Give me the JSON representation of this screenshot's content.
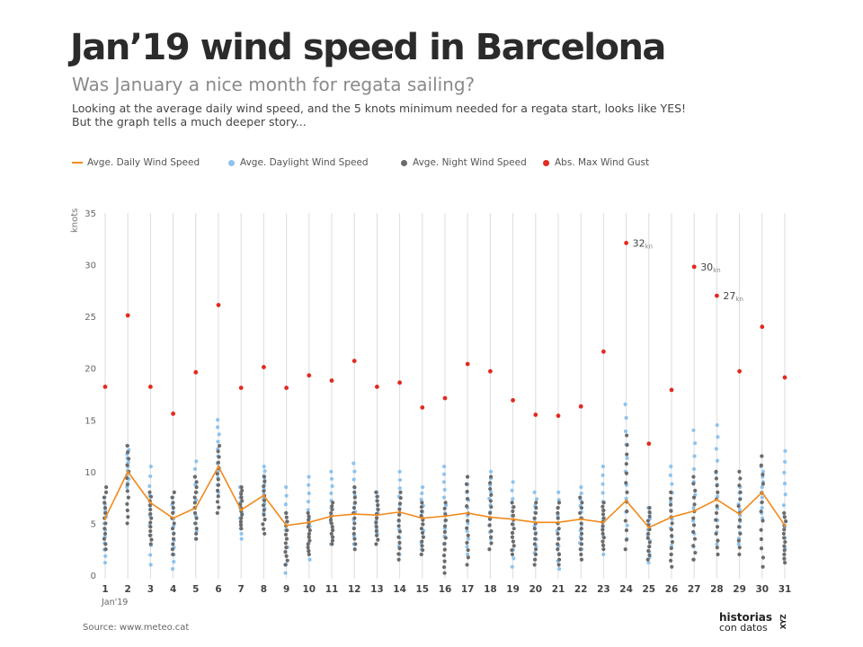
{
  "header": {
    "title": "Jan’19 wind speed in Barcelona",
    "subtitle": "Was January a nice month for regata sailing?",
    "desc_line1": "Looking at the average daily wind speed, and the 5 knots minimum needed for a regata start, looks like YES!",
    "desc_line2": "But the graph tells a much deeper story..."
  },
  "legend": [
    {
      "label": "Avge. Daily Wind Speed",
      "color": "#f28a1c",
      "kind": "line"
    },
    {
      "label": "Avge. Daylight Wind Speed",
      "color": "#8ec3ef",
      "kind": "dot"
    },
    {
      "label": "Avge. Night Wind Speed",
      "color": "#6b6b6b",
      "kind": "dot"
    },
    {
      "label": "Abs. Max Wind Gust",
      "color": "#e22a1f",
      "kind": "dot"
    }
  ],
  "footer": {
    "source": "Source: www.meteo.cat",
    "brand_top": "historias",
    "brand_bottom": "con datos",
    "brand_side": "XYZ"
  },
  "chart_data": {
    "type": "scatter",
    "ylabel": "knots",
    "ylim": [
      0,
      35
    ],
    "yticks": [
      0,
      5,
      10,
      15,
      20,
      25,
      30,
      35
    ],
    "xlabel_sub": "Jan'19",
    "days": [
      1,
      2,
      3,
      4,
      5,
      6,
      7,
      8,
      9,
      10,
      11,
      12,
      13,
      14,
      15,
      16,
      17,
      18,
      19,
      20,
      21,
      22,
      23,
      24,
      25,
      26,
      27,
      28,
      29,
      30,
      31
    ],
    "grid_x": true,
    "colors": {
      "daily": "#f28a1c",
      "day": "#8ec3ef",
      "night": "#6b6b6b",
      "gust": "#e22a1f"
    },
    "series": [
      {
        "name": "Avge. Daily Wind Speed",
        "values": [
          5.5,
          10,
          7,
          5.5,
          6.5,
          10.5,
          6.3,
          7.7,
          4.8,
          5.1,
          5.7,
          5.9,
          5.8,
          6.1,
          5.5,
          5.7,
          6.0,
          5.6,
          5.4,
          5.1,
          5.1,
          5.4,
          5.1,
          7.2,
          4.6,
          5.6,
          6.2,
          7.3,
          5.9,
          8.0,
          4.8
        ]
      },
      {
        "name": "Abs. Max Wind Gust",
        "values": [
          18.2,
          25.1,
          18.2,
          15.6,
          19.6,
          26.1,
          18.1,
          20.1,
          18.1,
          19.3,
          18.8,
          20.7,
          18.2,
          18.6,
          16.2,
          17.1,
          20.4,
          19.7,
          16.9,
          15.5,
          15.4,
          16.3,
          21.6,
          32.1,
          12.7,
          17.9,
          29.8,
          27.0,
          19.7,
          24.0,
          19.1
        ]
      }
    ],
    "ranges": {
      "day_low": [
        1.2,
        8.5,
        1.0,
        0.6,
        3.5,
        8.0,
        3.5,
        6.0,
        0.2,
        1.5,
        3.0,
        3.0,
        4.0,
        2.0,
        2.5,
        3.0,
        2.0,
        3.5,
        0.8,
        1.5,
        0.6,
        2.5,
        2.0,
        3.5,
        1.2,
        2.0,
        1.5,
        3.0,
        3.0,
        5.5,
        1.5
      ],
      "day_high": [
        7.5,
        12.5,
        10.5,
        7.5,
        11.0,
        15.0,
        8.5,
        10.5,
        8.5,
        9.5,
        10.0,
        10.8,
        8.0,
        10.0,
        8.5,
        10.5,
        9.5,
        10.0,
        9.0,
        8.0,
        8.0,
        8.5,
        10.5,
        16.5,
        6.5,
        10.5,
        14.0,
        14.5,
        8.5,
        10.5,
        12.0
      ],
      "night_low": [
        2.5,
        5.0,
        3.0,
        2.0,
        3.5,
        6.0,
        4.5,
        4.0,
        1.0,
        2.0,
        3.0,
        2.5,
        3.0,
        1.5,
        2.0,
        0.2,
        1.0,
        2.5,
        2.0,
        1.0,
        1.0,
        1.5,
        2.5,
        2.5,
        1.5,
        0.8,
        1.5,
        2.0,
        2.0,
        0.8,
        1.2
      ],
      "night_high": [
        8.5,
        12.5,
        8.0,
        8.0,
        9.5,
        12.5,
        8.5,
        9.5,
        6.0,
        6.0,
        7.0,
        8.5,
        8.0,
        8.0,
        7.0,
        7.0,
        9.5,
        9.5,
        7.0,
        7.0,
        7.0,
        7.5,
        7.0,
        13.5,
        6.5,
        8.0,
        9.5,
        10.0,
        10.0,
        11.5,
        6.0
      ]
    },
    "annotations": [
      {
        "day": 24,
        "value": "32",
        "unit": "kn"
      },
      {
        "day": 27,
        "value": "30",
        "unit": "kn"
      },
      {
        "day": 28,
        "value": "27",
        "unit": "kn"
      }
    ]
  }
}
